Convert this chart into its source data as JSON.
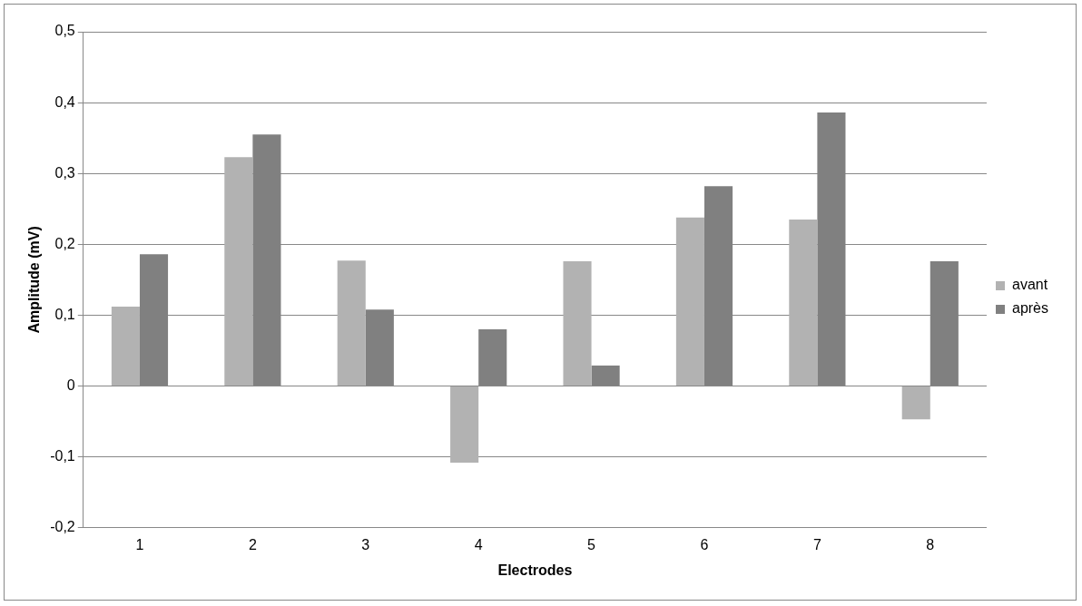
{
  "chart_data": {
    "type": "bar",
    "xlabel": "Electrodes",
    "ylabel": "Amplitude (mV)",
    "categories": [
      "1",
      "2",
      "3",
      "4",
      "5",
      "6",
      "7",
      "8"
    ],
    "series": [
      {
        "name": "avant",
        "color": "#b2b2b2",
        "values": [
          0.112,
          0.323,
          0.177,
          -0.108,
          0.176,
          0.238,
          0.235,
          -0.047
        ]
      },
      {
        "name": "après",
        "color": "#808080",
        "values": [
          0.186,
          0.355,
          0.108,
          0.08,
          0.029,
          0.282,
          0.386,
          0.176
        ]
      }
    ],
    "ylim": [
      -0.2,
      0.5
    ],
    "yticks": [
      {
        "value": -0.2,
        "label": "-0,2"
      },
      {
        "value": -0.1,
        "label": "-0,1"
      },
      {
        "value": 0,
        "label": "0"
      },
      {
        "value": 0.1,
        "label": "0,1"
      },
      {
        "value": 0.2,
        "label": "0,2"
      },
      {
        "value": 0.3,
        "label": "0,3"
      },
      {
        "value": 0.4,
        "label": "0,4"
      },
      {
        "value": 0.5,
        "label": "0,5"
      }
    ],
    "grid": "y",
    "legend": "right"
  }
}
